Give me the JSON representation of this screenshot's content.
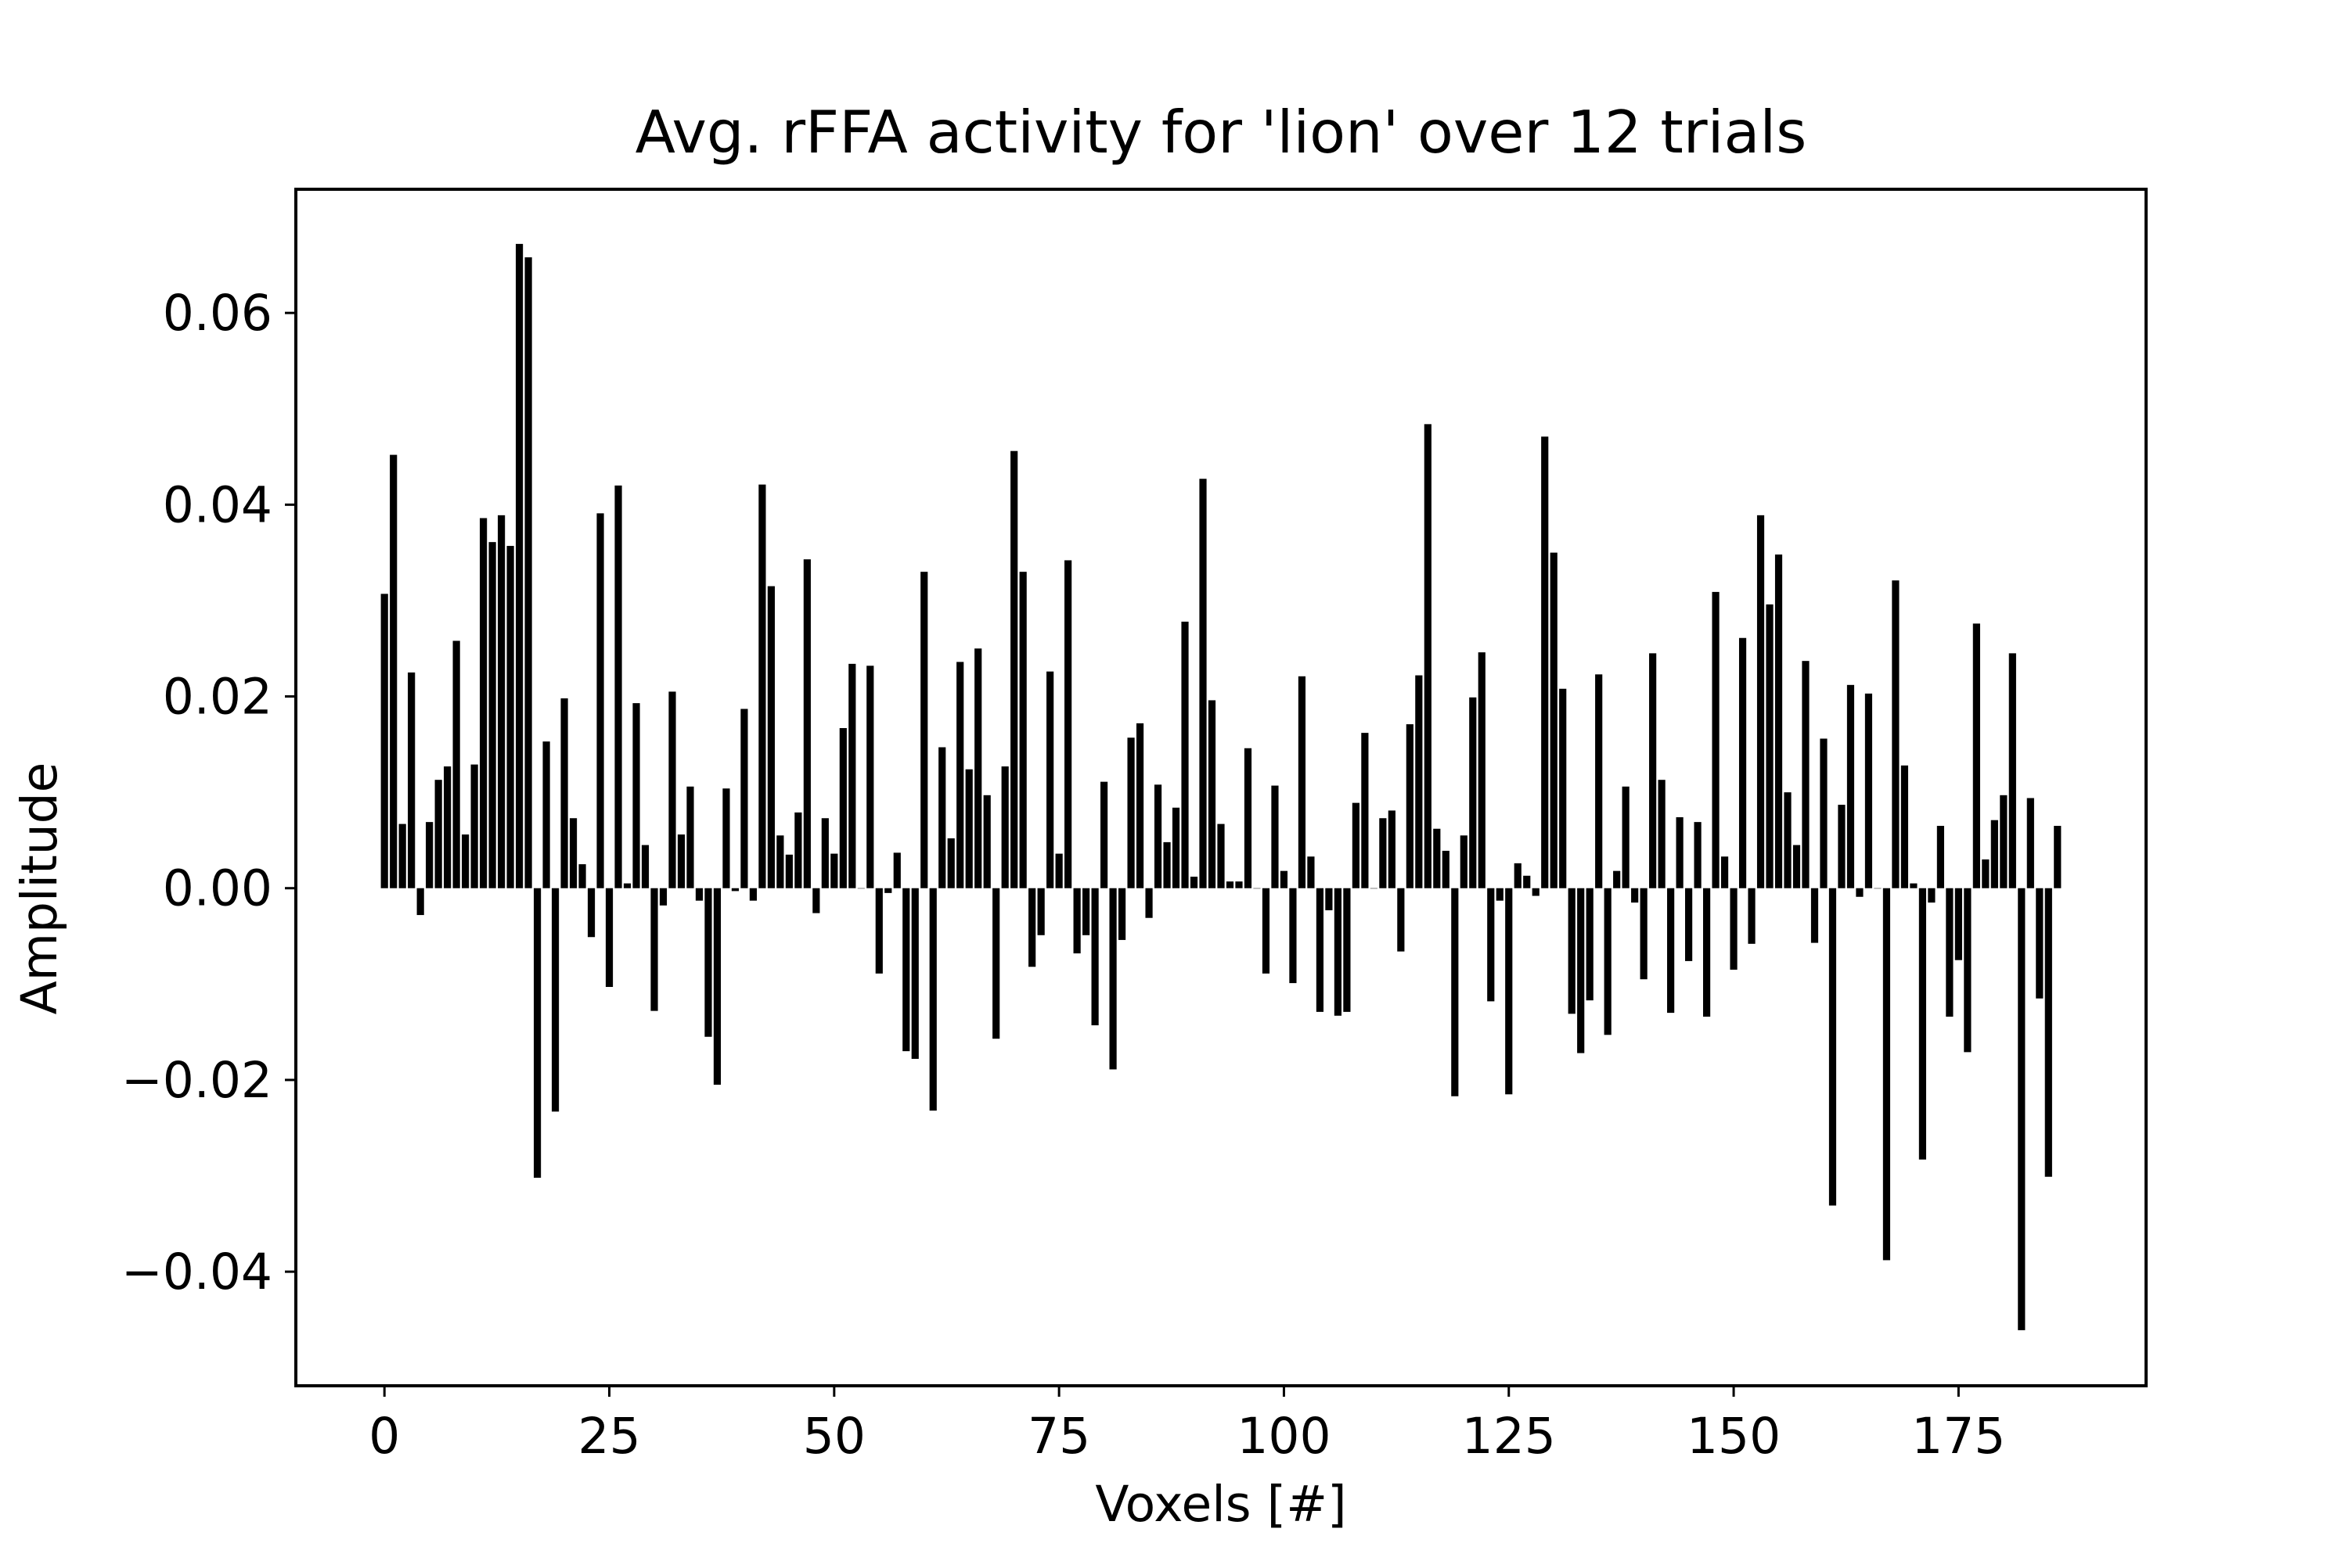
{
  "chart_data": {
    "type": "bar",
    "title": "Avg. rFFA activity for 'lion' over 12 trials",
    "xlabel": "Voxels [#]",
    "ylabel": "Amplitude",
    "xlim": [
      -9.85,
      195.85
    ],
    "ylim": [
      -0.0519,
      0.0729
    ],
    "grid": false,
    "bar_color": "#000000",
    "x_ticks": [
      0,
      25,
      50,
      75,
      100,
      125,
      150,
      175
    ],
    "y_ticks": [
      -0.04,
      -0.02,
      0.0,
      0.02,
      0.04,
      0.06
    ],
    "x_tick_labels": [
      "0",
      "25",
      "50",
      "75",
      "100",
      "125",
      "150",
      "175"
    ],
    "y_tick_labels": [
      "−0.04",
      "−0.02",
      "0.00",
      "0.02",
      "0.04",
      "0.06"
    ],
    "x": [
      0,
      1,
      2,
      3,
      4,
      5,
      6,
      7,
      8,
      9,
      10,
      11,
      12,
      13,
      14,
      15,
      16,
      17,
      18,
      19,
      20,
      21,
      22,
      23,
      24,
      25,
      26,
      27,
      28,
      29,
      30,
      31,
      32,
      33,
      34,
      35,
      36,
      37,
      38,
      39,
      40,
      41,
      42,
      43,
      44,
      45,
      46,
      47,
      48,
      49,
      50,
      51,
      52,
      53,
      54,
      55,
      56,
      57,
      58,
      59,
      60,
      61,
      62,
      63,
      64,
      65,
      66,
      67,
      68,
      69,
      70,
      71,
      72,
      73,
      74,
      75,
      76,
      77,
      78,
      79,
      80,
      81,
      82,
      83,
      84,
      85,
      86,
      87,
      88,
      89,
      90,
      91,
      92,
      93,
      94,
      95,
      96,
      97,
      98,
      99,
      100,
      101,
      102,
      103,
      104,
      105,
      106,
      107,
      108,
      109,
      110,
      111,
      112,
      113,
      114,
      115,
      116,
      117,
      118,
      119,
      120,
      121,
      122,
      123,
      124,
      125,
      126,
      127,
      128,
      129,
      130,
      131,
      132,
      133,
      134,
      135,
      136,
      137,
      138,
      139,
      140,
      141,
      142,
      143,
      144,
      145,
      146,
      147,
      148,
      149,
      150,
      151,
      152,
      153,
      154,
      155,
      156,
      157,
      158,
      159,
      160,
      161,
      162,
      163,
      164,
      165,
      166,
      167,
      168,
      169,
      170,
      171,
      172,
      173,
      174,
      175,
      176,
      177,
      178,
      179,
      180,
      181,
      182,
      183,
      184,
      185,
      186
    ],
    "values": [
      0.0307,
      0.0452,
      0.0067,
      0.0225,
      -0.0028,
      0.0069,
      0.0113,
      0.0127,
      0.0258,
      0.0056,
      0.0129,
      0.0386,
      0.0361,
      0.0389,
      0.0357,
      0.0672,
      0.0658,
      -0.0302,
      0.0153,
      -0.0233,
      0.0198,
      0.0073,
      0.0025,
      -0.0051,
      0.0391,
      -0.0103,
      0.042,
      0.0005,
      0.0193,
      0.0045,
      -0.0128,
      -0.0018,
      0.0205,
      0.0056,
      0.0106,
      -0.0013,
      -0.0155,
      -0.0205,
      0.0104,
      -0.0003,
      0.0187,
      -0.0013,
      0.0421,
      0.0315,
      0.0055,
      0.0035,
      0.0079,
      0.0343,
      -0.0026,
      0.0073,
      0.0036,
      0.0167,
      0.0234,
      0.0,
      0.0232,
      -0.0089,
      -0.0005,
      0.0037,
      -0.017,
      -0.0178,
      0.033,
      -0.0232,
      0.0147,
      0.0052,
      0.0236,
      0.0124,
      0.025,
      0.0097,
      -0.0157,
      0.0127,
      0.0456,
      0.033,
      -0.0082,
      -0.0049,
      0.0226,
      0.0036,
      0.0342,
      -0.0068,
      -0.0049,
      -0.0143,
      0.0111,
      -0.0189,
      -0.0054,
      0.0157,
      0.0172,
      -0.0031,
      0.0108,
      0.0048,
      0.0084,
      0.0278,
      0.0012,
      0.0427,
      0.0196,
      0.0067,
      0.0007,
      0.0007,
      0.0146,
      0.0,
      -0.0089,
      0.0107,
      0.0018,
      -0.0099,
      0.0221,
      0.0033,
      -0.0129,
      -0.0023,
      -0.0133,
      -0.0129,
      0.0089,
      0.0162,
      0.0,
      0.0073,
      0.0081,
      -0.0066,
      0.0171,
      0.0222,
      0.0484,
      0.0062,
      0.0039,
      -0.0217,
      0.0055,
      0.0199,
      0.0246,
      -0.0118,
      -0.0013,
      -0.0215,
      0.0026,
      0.0013,
      -0.0008,
      0.0471,
      0.035,
      0.0208,
      -0.0131,
      -0.0172,
      -0.0117,
      0.0223,
      -0.0153,
      0.0018,
      0.0106,
      -0.0015,
      -0.0095,
      0.0245,
      0.0113,
      -0.013,
      0.0074,
      -0.0076,
      0.0069,
      -0.0134,
      0.0309,
      0.0033,
      -0.0085,
      0.0261,
      -0.0058,
      0.0389,
      0.0296,
      0.0348,
      0.01,
      0.0045,
      0.0237,
      -0.0057,
      0.0156,
      -0.0331,
      0.0087,
      0.0212,
      -0.0009,
      0.0203,
      0.0,
      -0.0388,
      0.0321,
      0.0128,
      0.0005,
      -0.0283,
      -0.0015,
      0.0065,
      -0.0134,
      -0.0075,
      -0.0171,
      0.0276,
      0.003,
      0.0071,
      0.0097,
      0.0245,
      -0.0461,
      0.0094,
      -0.0115,
      -0.0301,
      0.0065
    ]
  }
}
